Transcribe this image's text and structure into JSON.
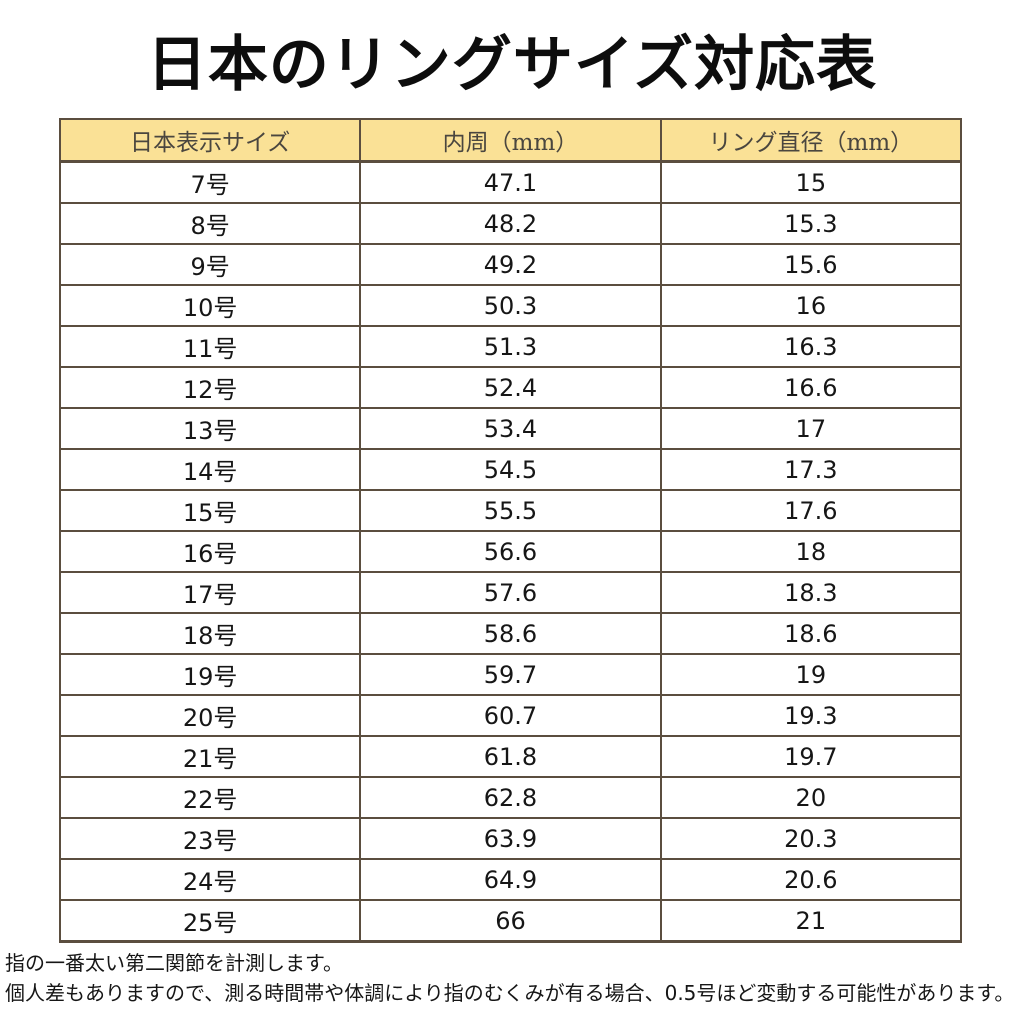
{
  "page": {
    "title": "日本のリングサイズ対応表"
  },
  "table": {
    "headers": [
      "日本表示サイズ",
      "内周（mm）",
      "リング直径（mm）"
    ],
    "rows": [
      [
        "7号",
        "47.1",
        "15"
      ],
      [
        "8号",
        "48.2",
        "15.3"
      ],
      [
        "9号",
        "49.2",
        "15.6"
      ],
      [
        "10号",
        "50.3",
        "16"
      ],
      [
        "11号",
        "51.3",
        "16.3"
      ],
      [
        "12号",
        "52.4",
        "16.6"
      ],
      [
        "13号",
        "53.4",
        "17"
      ],
      [
        "14号",
        "54.5",
        "17.3"
      ],
      [
        "15号",
        "55.5",
        "17.6"
      ],
      [
        "16号",
        "56.6",
        "18"
      ],
      [
        "17号",
        "57.6",
        "18.3"
      ],
      [
        "18号",
        "58.6",
        "18.6"
      ],
      [
        "19号",
        "59.7",
        "19"
      ],
      [
        "20号",
        "60.7",
        "19.3"
      ],
      [
        "21号",
        "61.8",
        "19.7"
      ],
      [
        "22号",
        "62.8",
        "20"
      ],
      [
        "23号",
        "63.9",
        "20.3"
      ],
      [
        "24号",
        "64.9",
        "20.6"
      ],
      [
        "25号",
        "66",
        "21"
      ]
    ]
  },
  "notes": {
    "line1": "指の一番太い第二関節を計測します。",
    "line2": "個人差もありますので、測る時間帯や体調により指のむくみが有る場合、0.5号ほど変動する可能性があります。"
  },
  "colors": {
    "header_bg": "#FAE196",
    "border": "#5B4E3F",
    "header_text": "#4A463F",
    "body_text": "#161616"
  }
}
